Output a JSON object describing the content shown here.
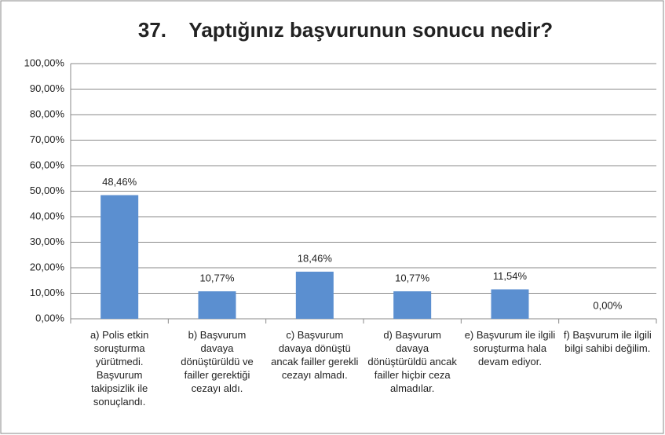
{
  "chart_data": {
    "type": "bar",
    "title": "37.    Yaptığınız başvurunun sonucu nedir?",
    "categories": [
      "a) Polis etkin soruşturma yürütmedi. Başvurum takipsizlik ile sonuçlandı.",
      "b) Başvurum davaya dönüştürüldü ve failler gerektiği cezayı aldı.",
      "c) Başvurum davaya dönüştü ancak failler gerekli cezayı almadı.",
      "d) Başvurum davaya dönüştürüldü ancak failler hiçbir ceza almadılar.",
      "e) Başvurum ile ilgili soruşturma hala devam ediyor.",
      "f) Başvurum ile ilgili bilgi sahibi değilim."
    ],
    "values": [
      48.46,
      10.77,
      18.46,
      10.77,
      11.54,
      0
    ],
    "value_labels": [
      "48,46%",
      "10,77%",
      "18,46%",
      "10,77%",
      "11,54%",
      "0,00%"
    ],
    "color": "#5b8fd0",
    "ylim": [
      0,
      100
    ],
    "yticks": [
      {
        "value": 0,
        "label": "0,00%"
      },
      {
        "value": 10,
        "label": "10,00%"
      },
      {
        "value": 20,
        "label": "20,00%"
      },
      {
        "value": 30,
        "label": "30,00%"
      },
      {
        "value": 40,
        "label": "40,00%"
      },
      {
        "value": 50,
        "label": "50,00%"
      },
      {
        "value": 60,
        "label": "60,00%"
      },
      {
        "value": 70,
        "label": "70,00%"
      },
      {
        "value": 80,
        "label": "80,00%"
      },
      {
        "value": 90,
        "label": "90,00%"
      },
      {
        "value": 100,
        "label": "100,00%"
      }
    ],
    "grid": true
  }
}
